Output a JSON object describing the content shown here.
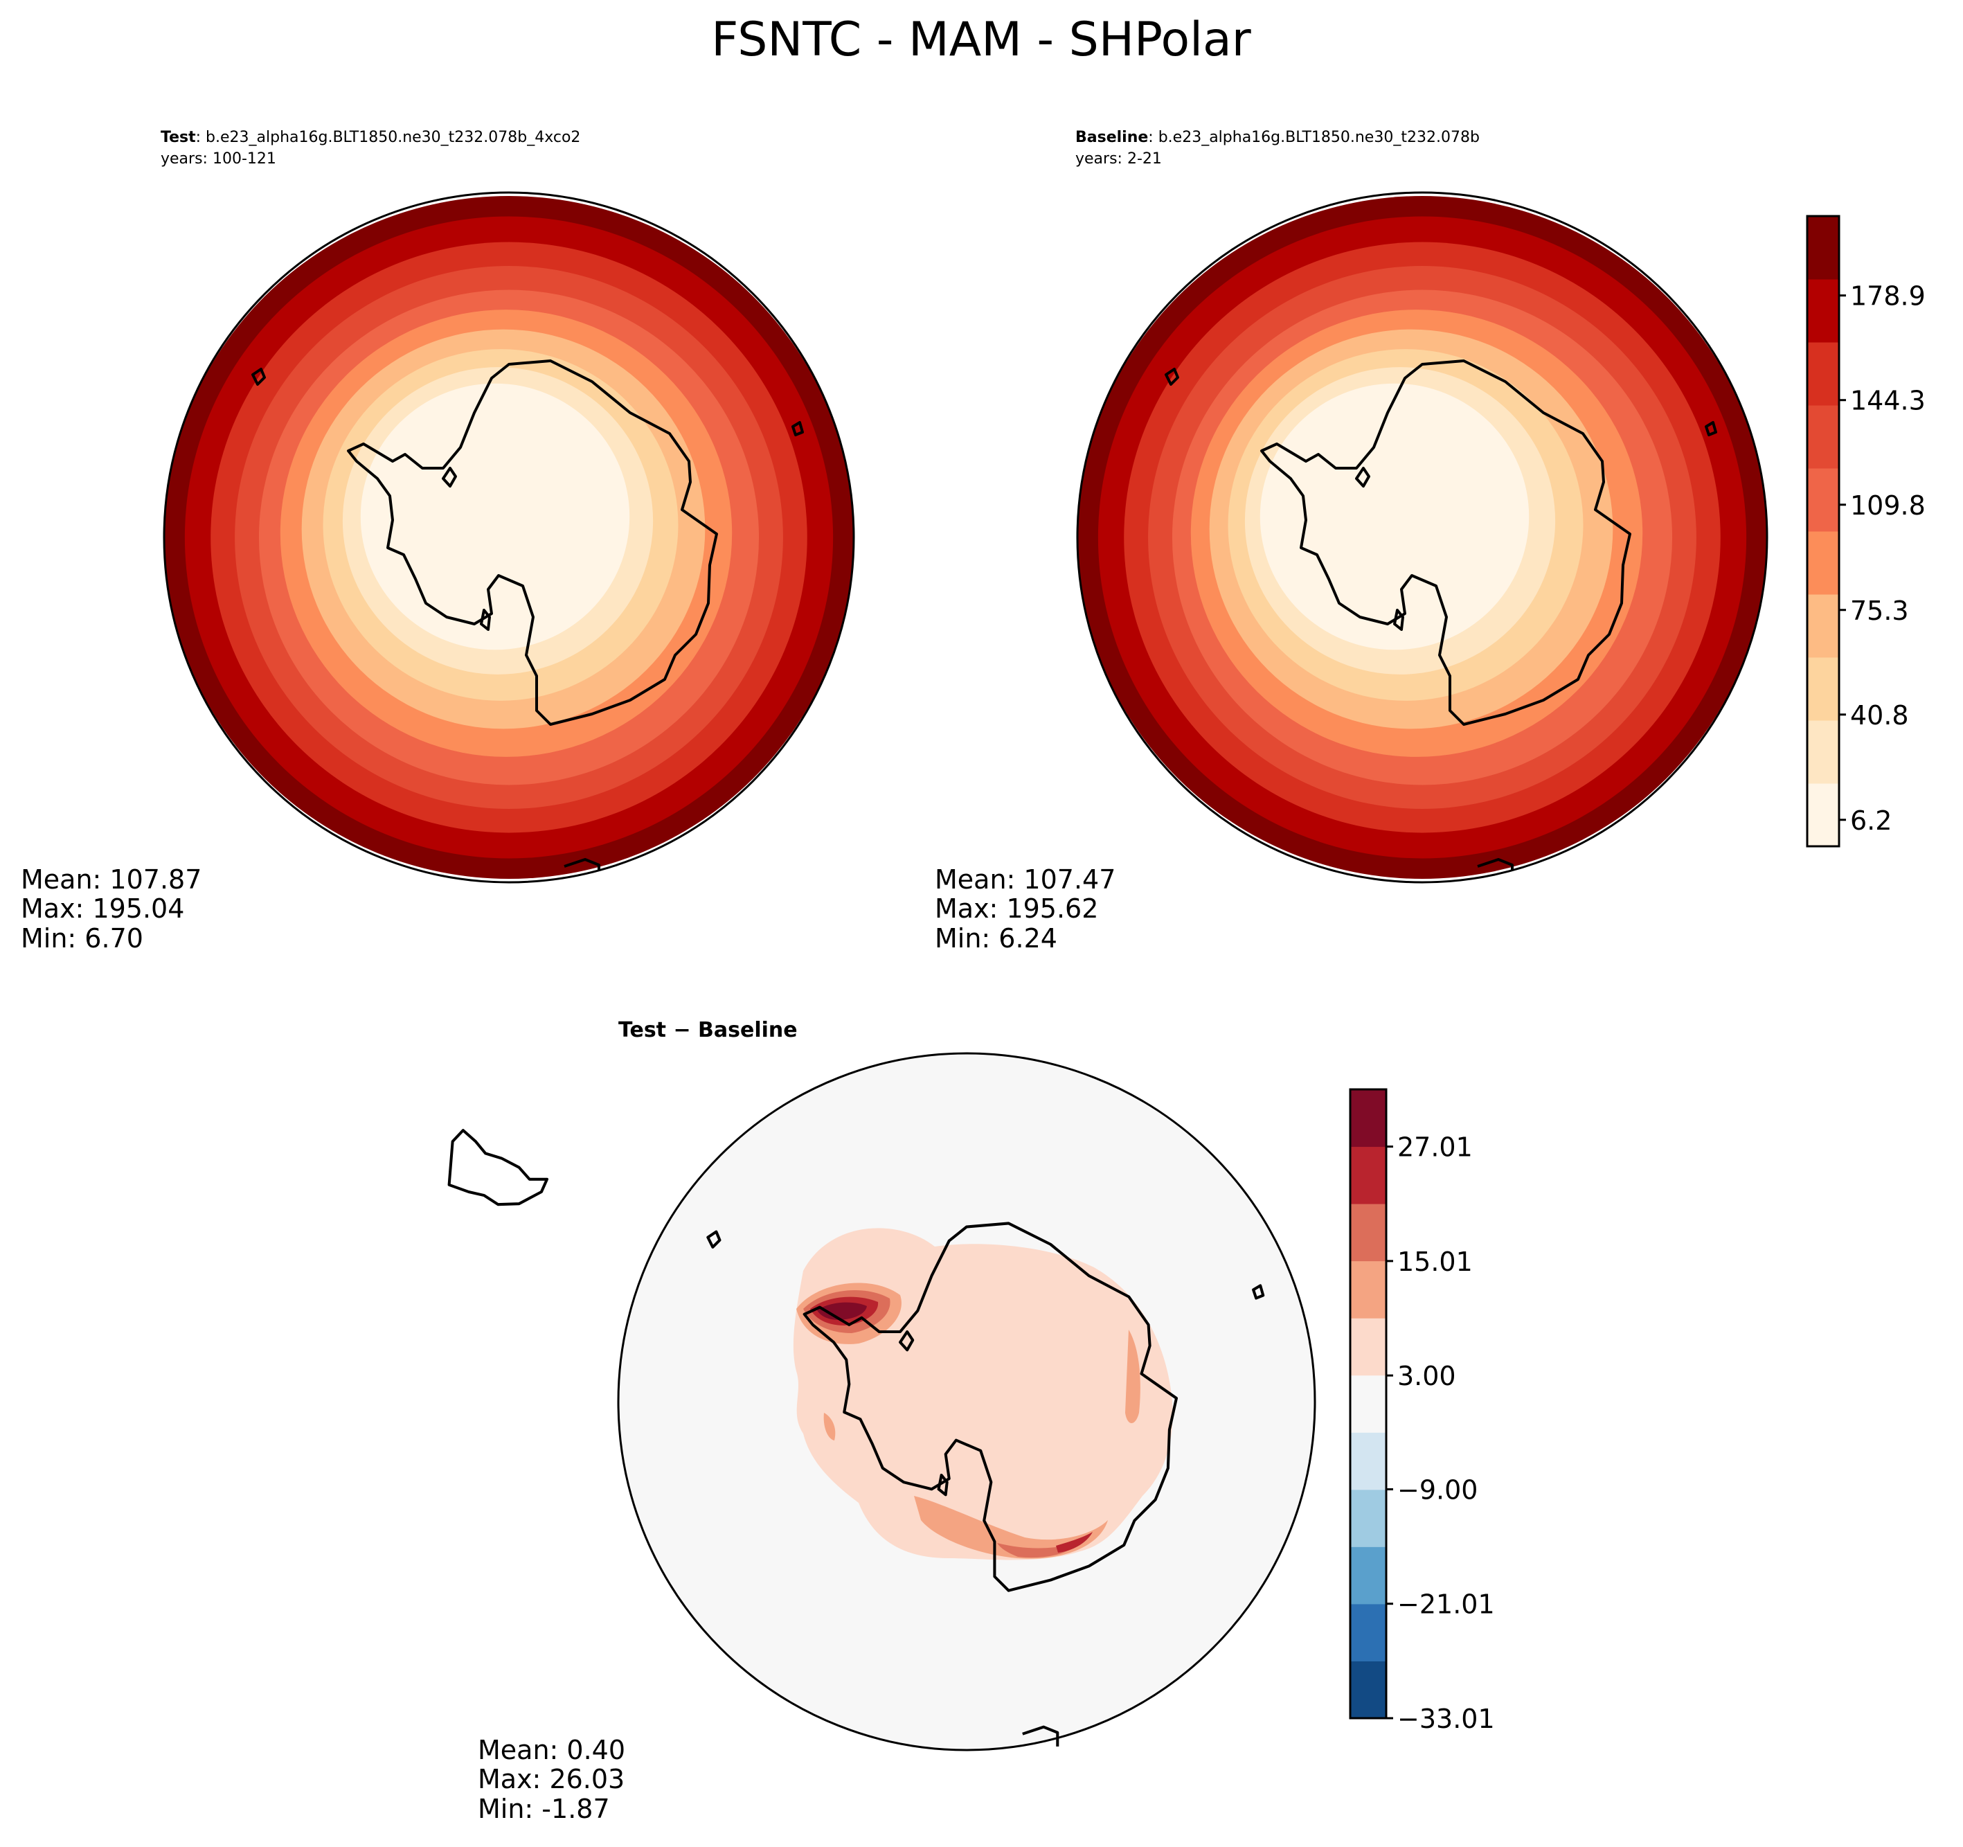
{
  "figure": {
    "title": "FSNTC - MAM - SHPolar"
  },
  "panels": [
    {
      "id": "test",
      "label": "Test",
      "case": ": b.e23_alpha16g.BLT1850.ne30_t232.078b_4xco2",
      "years": "years: 100-121",
      "stats": {
        "mean": "Mean: 107.87",
        "max": "Max: 195.04",
        "min": "Min:  6.70"
      }
    },
    {
      "id": "baseline",
      "label": "Baseline",
      "case": ": b.e23_alpha16g.BLT1850.ne30_t232.078b",
      "years": "years: 2-21",
      "stats": {
        "mean": "Mean: 107.47",
        "max": "Max: 195.62",
        "min": "Min:  6.24"
      }
    },
    {
      "id": "diff",
      "label": "Test − Baseline",
      "stats": {
        "mean": "Mean:  0.40",
        "max": "Max: 26.03",
        "min": "Min: -1.87"
      }
    }
  ],
  "colorbars": {
    "field": {
      "ticks": [
        "6.2",
        "40.8",
        "75.3",
        "109.8",
        "144.3",
        "178.9"
      ],
      "colors": [
        "#fff5e6",
        "#fee6c3",
        "#fdd49e",
        "#fdbb84",
        "#fc8d59",
        "#ef6548",
        "#e34a33",
        "#d7301f",
        "#b30000",
        "#7f0000"
      ]
    },
    "diff": {
      "ticks": [
        "−33.01",
        "−21.01",
        "−9.00",
        "3.00",
        "15.01",
        "27.01"
      ],
      "colors": [
        "#124a84",
        "#2c70b3",
        "#5aa0cc",
        "#9fcbe2",
        "#d3e5f1",
        "#f7f7f7",
        "#fcdacb",
        "#f4a482",
        "#dc6e5a",
        "#b9242e",
        "#800b27"
      ]
    }
  }
}
